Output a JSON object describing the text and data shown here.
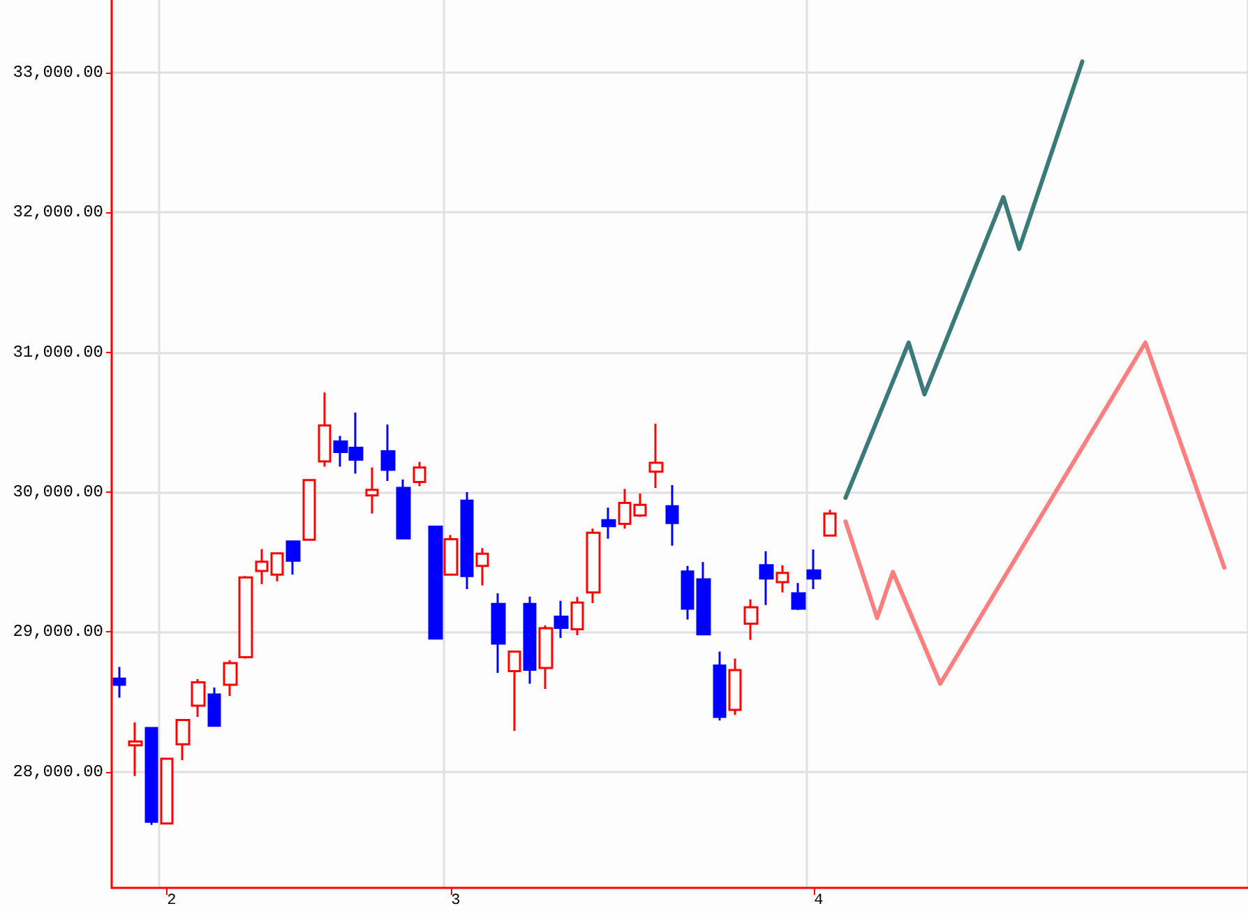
{
  "chart_data": {
    "type": "candlestick",
    "categories": [
      null,
      null,
      null,
      "2",
      null,
      null,
      null,
      null,
      null,
      null,
      null,
      null,
      null,
      null,
      null,
      null,
      null,
      null,
      null,
      null,
      null,
      "3",
      null,
      null,
      null,
      null,
      null,
      null,
      null,
      null,
      null,
      null,
      null,
      null,
      null,
      null,
      null,
      null,
      null,
      null,
      null,
      null,
      null,
      null,
      "4",
      null,
      null,
      null,
      null,
      null,
      null,
      null,
      null,
      null,
      null,
      null,
      null,
      null,
      null,
      null,
      null,
      null,
      null,
      null,
      null,
      null,
      null,
      null,
      null,
      null,
      null,
      null
    ],
    "ohlc": [
      [
        28667,
        28750,
        28530,
        28623
      ],
      [
        28190,
        28353,
        27970,
        28217
      ],
      [
        28313,
        28313,
        27620,
        27643
      ],
      [
        27630,
        28093,
        27630,
        28093
      ],
      [
        28197,
        28377,
        28083,
        28370
      ],
      [
        28473,
        28663,
        28393,
        28640
      ],
      [
        28553,
        28603,
        28330,
        28330
      ],
      [
        28623,
        28797,
        28543,
        28777
      ],
      [
        28820,
        29400,
        28810,
        29390
      ],
      [
        29437,
        29593,
        29343,
        29503
      ],
      [
        29410,
        29563,
        29363,
        29563
      ],
      [
        29647,
        29653,
        29410,
        29510
      ],
      [
        29660,
        30087,
        29660,
        30087
      ],
      [
        30220,
        30713,
        30183,
        30477
      ],
      [
        30363,
        30403,
        30183,
        30287
      ],
      [
        30317,
        30570,
        30133,
        30233
      ],
      [
        29977,
        30177,
        29847,
        30017
      ],
      [
        30293,
        30483,
        30080,
        30160
      ],
      [
        30030,
        30090,
        29670,
        29670
      ],
      [
        30073,
        30217,
        30043,
        30177
      ],
      [
        29753,
        29760,
        28953,
        28953
      ],
      [
        29410,
        29693,
        29410,
        29663
      ],
      [
        29940,
        30000,
        29307,
        29400
      ],
      [
        29473,
        29600,
        29333,
        29560
      ],
      [
        29200,
        29277,
        28707,
        28917
      ],
      [
        28720,
        28860,
        28293,
        28860
      ],
      [
        29200,
        29253,
        28630,
        28730
      ],
      [
        28743,
        29047,
        28593,
        29027
      ],
      [
        29110,
        29223,
        28957,
        29030
      ],
      [
        29020,
        29250,
        28977,
        29210
      ],
      [
        29283,
        29740,
        29207,
        29710
      ],
      [
        29800,
        29890,
        29667,
        29757
      ],
      [
        29773,
        30023,
        29740,
        29923
      ],
      [
        29833,
        29990,
        29823,
        29910
      ],
      [
        30147,
        30490,
        30030,
        30210
      ],
      [
        29900,
        30050,
        29617,
        29780
      ],
      [
        29433,
        29473,
        29090,
        29167
      ],
      [
        29377,
        29500,
        28983,
        28983
      ],
      [
        28760,
        28860,
        28367,
        28393
      ],
      [
        28443,
        28810,
        28407,
        28727
      ],
      [
        29060,
        29233,
        28943,
        29177
      ],
      [
        29477,
        29577,
        29193,
        29383
      ],
      [
        29357,
        29477,
        29283,
        29423
      ],
      [
        29277,
        29350,
        29157,
        29167
      ],
      [
        29440,
        29590,
        29307,
        29383
      ],
      [
        29690,
        29873,
        29683,
        29847
      ],
      null,
      null,
      null,
      null,
      null,
      null,
      null,
      null,
      null,
      null,
      null,
      null,
      null,
      null,
      null,
      null,
      null,
      null,
      null,
      null,
      null,
      null,
      null,
      null,
      null,
      null
    ],
    "colors": [
      "#0000ff",
      "#ff0000",
      "#0000ff",
      "#ff0000",
      "#ff0000",
      "#ff0000",
      "#0000ff",
      "#ff0000",
      "#ff0000",
      "#ff0000",
      "#ff0000",
      "#0000ff",
      "#ff0000",
      "#ff0000",
      "#0000ff",
      "#0000ff",
      "#ff0000",
      "#0000ff",
      "#0000ff",
      "#ff0000",
      "#0000ff",
      "#ff0000",
      "#0000ff",
      "#ff0000",
      "#0000ff",
      "#ff0000",
      "#0000ff",
      "#ff0000",
      "#0000ff",
      "#ff0000",
      "#ff0000",
      "#0000ff",
      "#ff0000",
      "#ff0000",
      "#ff0000",
      "#0000ff",
      "#0000ff",
      "#0000ff",
      "#0000ff",
      "#ff0000",
      "#ff0000",
      "#0000ff",
      "#ff0000",
      "#0000ff",
      "#0000ff",
      "#ff0000",
      null,
      null,
      null,
      null,
      null,
      null,
      null,
      null,
      null,
      null,
      null,
      null,
      null,
      null,
      null,
      null,
      null,
      null,
      null,
      null,
      null,
      null,
      null,
      null,
      null,
      null
    ],
    "series": [
      {
        "type": "line",
        "color": "#3a7a78",
        "values": [
          null,
          null,
          null,
          null,
          null,
          null,
          null,
          null,
          null,
          null,
          null,
          null,
          null,
          null,
          null,
          null,
          null,
          null,
          null,
          null,
          null,
          null,
          null,
          null,
          null,
          null,
          null,
          null,
          null,
          null,
          null,
          null,
          null,
          null,
          null,
          null,
          null,
          null,
          null,
          null,
          null,
          null,
          null,
          null,
          null,
          null,
          29960,
          null,
          null,
          null,
          31070,
          30700,
          null,
          null,
          null,
          null,
          32110,
          31740,
          null,
          null,
          null,
          33080,
          null,
          null,
          null,
          null,
          null,
          null,
          null,
          null,
          null,
          null
        ]
      },
      {
        "type": "line",
        "color": "#ff7f7f",
        "values": [
          null,
          null,
          null,
          null,
          null,
          null,
          null,
          null,
          null,
          null,
          null,
          null,
          null,
          null,
          null,
          null,
          null,
          null,
          null,
          null,
          null,
          null,
          null,
          null,
          null,
          null,
          null,
          null,
          null,
          null,
          null,
          null,
          null,
          null,
          null,
          null,
          null,
          null,
          null,
          null,
          null,
          null,
          null,
          null,
          null,
          null,
          29790,
          null,
          29100,
          29430,
          null,
          null,
          28630,
          null,
          null,
          null,
          null,
          null,
          null,
          null,
          null,
          null,
          null,
          null,
          null,
          31070,
          null,
          null,
          null,
          null,
          29460,
          null
        ]
      }
    ],
    "ylim": [
      27170,
      33520
    ],
    "yticks": [
      {
        "value": 28000,
        "label": "28,000.00"
      },
      {
        "value": 29000,
        "label": "29,000.00"
      },
      {
        "value": 30000,
        "label": "30,000.00"
      },
      {
        "value": 31000,
        "label": "31,000.00"
      },
      {
        "value": 32000,
        "label": "32,000.00"
      },
      {
        "value": 33000,
        "label": "33,000.00"
      }
    ],
    "grid": true,
    "line_style": "solid",
    "marker": "none"
  }
}
